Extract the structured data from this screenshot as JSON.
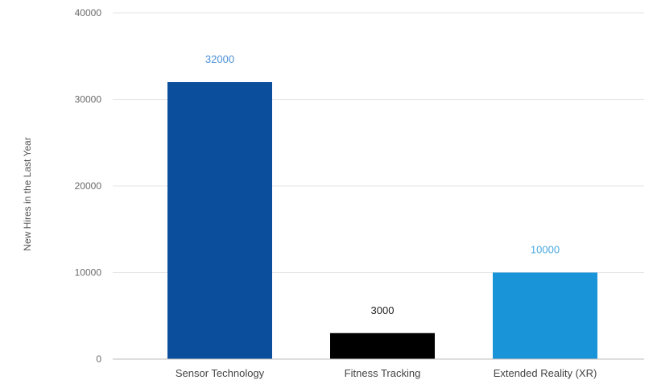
{
  "chart_data": {
    "type": "bar",
    "title": "",
    "xlabel": "",
    "ylabel": "New Hires in the Last Year",
    "categories": [
      "Sensor Technology",
      "Fitness Tracking",
      "Extended Reality (XR)"
    ],
    "values": [
      32000,
      3000,
      10000
    ],
    "data_labels": [
      "32000",
      "3000",
      "10000"
    ],
    "ylim": [
      0,
      40000
    ],
    "y_ticks": [
      0,
      10000,
      20000,
      30000,
      40000
    ],
    "y_tick_labels": [
      "0",
      "10000",
      "20000",
      "30000",
      "40000"
    ],
    "bar_colors": [
      "#0b4f9c",
      "#000000",
      "#1a94d8"
    ],
    "label_colors": [
      "#4a90d9",
      "#222222",
      "#4aa8e0"
    ],
    "grid": true,
    "legend": "none"
  }
}
